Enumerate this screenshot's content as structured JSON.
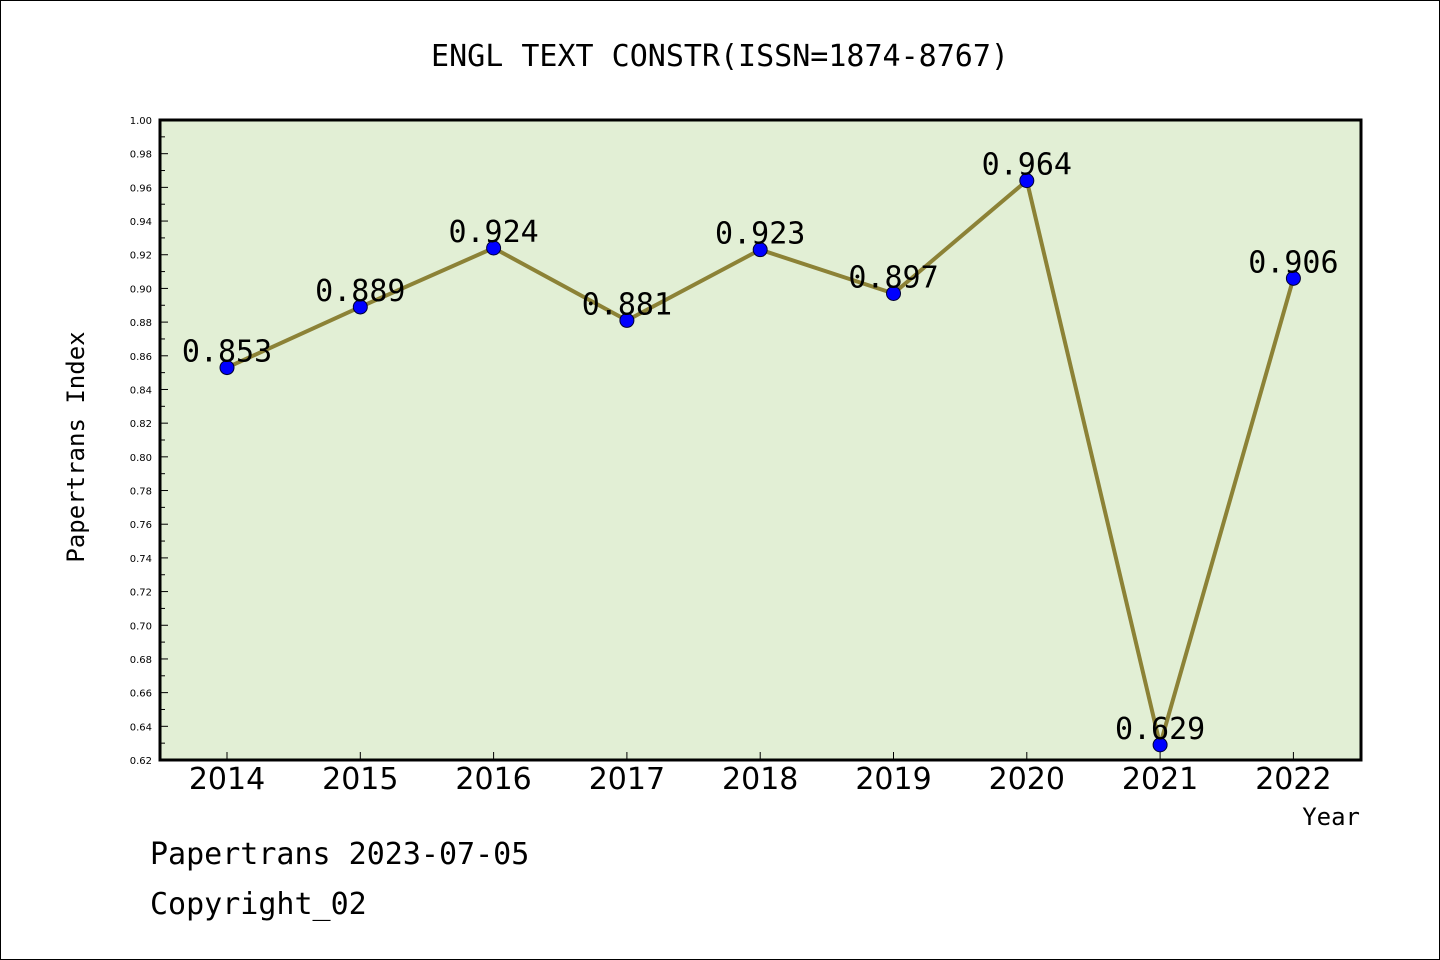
{
  "footer": {
    "line1": "Papertrans 2023-07-05",
    "line2": "Copyright_02"
  },
  "colors": {
    "plot_background": "#e2efd5",
    "line": "#8c8236",
    "marker": "#0000ff",
    "axis": "#000000"
  },
  "chart_data": {
    "type": "line",
    "title": "ENGL TEXT CONSTR(ISSN=1874-8767)",
    "xlabel": "Year",
    "ylabel": "Papertrans Index",
    "categories": [
      "2014",
      "2015",
      "2016",
      "2017",
      "2018",
      "2019",
      "2020",
      "2021",
      "2022"
    ],
    "series": [
      {
        "values": [
          0.853,
          0.889,
          0.924,
          0.881,
          0.923,
          0.897,
          0.964,
          0.629,
          0.906
        ]
      }
    ],
    "data_labels": [
      "0.853",
      "0.889",
      "0.924",
      "0.881",
      "0.923",
      "0.897",
      "0.964",
      "0.629",
      "0.906"
    ],
    "ylim": [
      0.62,
      1.0
    ],
    "ytick_step": 0.02,
    "ytick_labels": [
      "0.62",
      "0.64",
      "0.66",
      "0.68",
      "0.70",
      "0.72",
      "0.74",
      "0.76",
      "0.78",
      "0.80",
      "0.82",
      "0.84",
      "0.86",
      "0.88",
      "0.90",
      "0.92",
      "0.94",
      "0.96",
      "0.98",
      "1.00"
    ],
    "grid": false,
    "legend": "none"
  }
}
